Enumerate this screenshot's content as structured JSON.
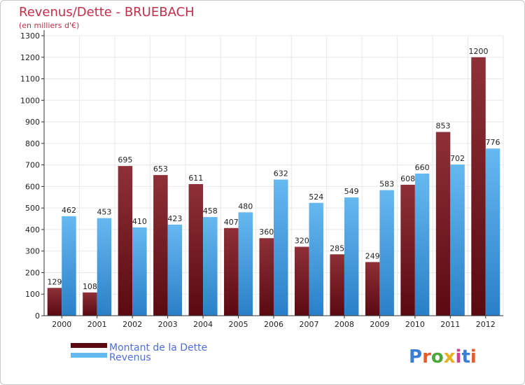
{
  "header": {
    "title": "Revenus/Dette - BRUEBACH",
    "subtitle": "(en milliers d'€)"
  },
  "logo": {
    "text": "Proxiti",
    "letter_colors": [
      "#3a7fd5",
      "#e85a2a",
      "#4aa83a",
      "#e8b020",
      "#d04090",
      "#3a7fd5",
      "#e85a2a"
    ]
  },
  "colors": {
    "dette_top": "#8e3038",
    "dette_bottom": "#5a0a10",
    "revenus_top": "#66b8f0",
    "revenus_bottom": "#2a80c8",
    "grid": "#e8e8e8",
    "axis": "#333333"
  },
  "chart_data": {
    "type": "bar",
    "categories": [
      "2000",
      "2001",
      "2002",
      "2003",
      "2004",
      "2005",
      "2006",
      "2007",
      "2008",
      "2009",
      "2010",
      "2011",
      "2012"
    ],
    "series": [
      {
        "name": "Montant de la Dette",
        "values": [
          129,
          108,
          695,
          653,
          611,
          407,
          360,
          320,
          285,
          249,
          608,
          853,
          1200
        ]
      },
      {
        "name": "Revenus",
        "values": [
          462,
          453,
          410,
          423,
          458,
          480,
          632,
          524,
          549,
          583,
          660,
          702,
          776
        ]
      }
    ],
    "ylim": [
      0,
      1300
    ],
    "yticks": [
      0,
      100,
      200,
      300,
      400,
      500,
      600,
      700,
      800,
      900,
      1000,
      1100,
      1200,
      1300
    ],
    "grid": true,
    "legend_position": "bottom-left"
  }
}
